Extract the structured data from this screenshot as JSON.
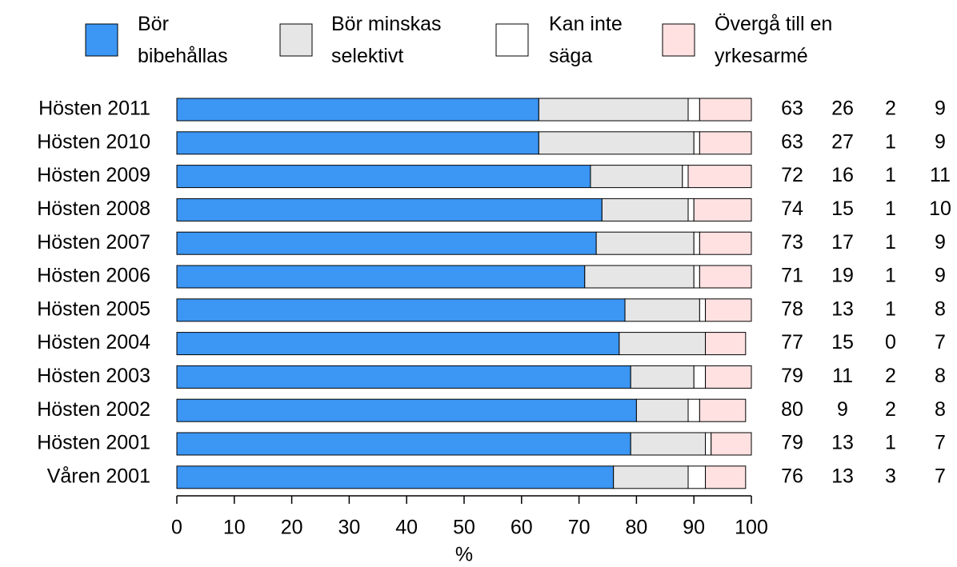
{
  "chart_data": {
    "type": "stacked-bar-horizontal",
    "x_label": "%",
    "categories": [
      "Hösten 2011",
      "Hösten 2010",
      "Hösten 2009",
      "Hösten 2008",
      "Hösten 2007",
      "Hösten 2006",
      "Hösten 2005",
      "Hösten 2004",
      "Hösten 2003",
      "Hösten 2002",
      "Hösten 2001",
      "Våren 2001"
    ],
    "series": [
      {
        "name": "Bör\nbibehållas",
        "color": "#3b96f4",
        "values": [
          63,
          63,
          72,
          74,
          73,
          71,
          78,
          77,
          79,
          80,
          79,
          76
        ]
      },
      {
        "name": "Bör minskas\nselektivt",
        "color": "#e6e6e6",
        "values": [
          26,
          27,
          16,
          15,
          17,
          19,
          13,
          15,
          11,
          9,
          13,
          13
        ]
      },
      {
        "name": "Kan inte\nsäga",
        "color": "#ffffff",
        "values": [
          2,
          1,
          1,
          1,
          1,
          1,
          1,
          0,
          2,
          2,
          1,
          3
        ]
      },
      {
        "name": "Övergå till en\nyrkesarmé",
        "color": "#ffe1e1",
        "values": [
          9,
          9,
          11,
          10,
          9,
          9,
          8,
          7,
          8,
          8,
          7,
          7
        ]
      }
    ],
    "xlim": [
      0,
      100
    ],
    "xticks": [
      0,
      10,
      20,
      30,
      40,
      50,
      60,
      70,
      80,
      90,
      100
    ]
  }
}
